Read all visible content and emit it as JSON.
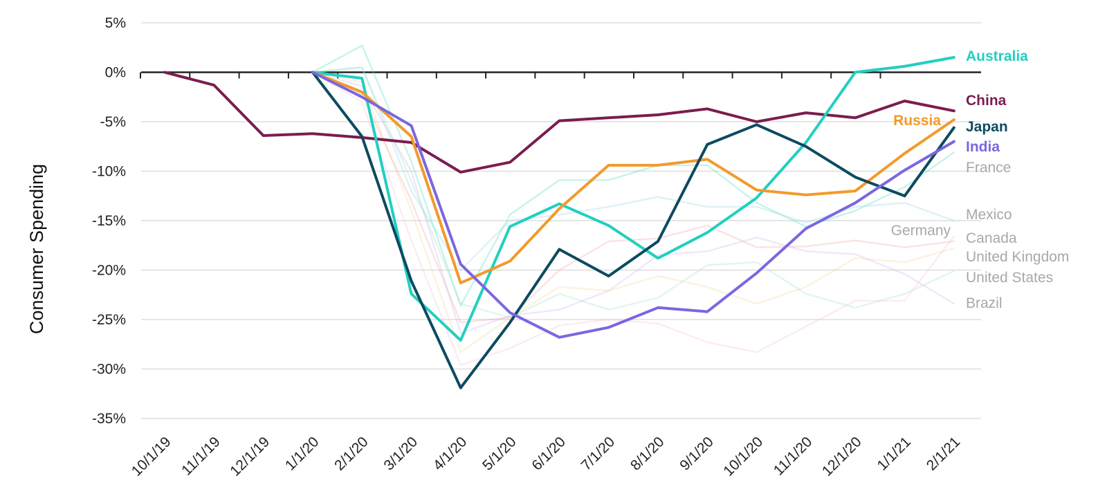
{
  "chart_data": {
    "type": "line",
    "ylabel": "Consumer Spending",
    "ylim": [
      -35,
      5
    ],
    "y_ticks": [
      5,
      0,
      -5,
      -10,
      -15,
      -20,
      -25,
      -30,
      -35
    ],
    "y_tick_labels": [
      "5%",
      "0%",
      "-5%",
      "-10%",
      "-15%",
      "-20%",
      "-25%",
      "-30%",
      "-35%"
    ],
    "categories": [
      "10/1/19",
      "11/1/19",
      "12/1/19",
      "1/1/20",
      "2/1/20",
      "3/1/20",
      "4/1/20",
      "5/1/20",
      "6/1/20",
      "7/1/20",
      "8/1/20",
      "9/1/20",
      "10/1/20",
      "11/1/20",
      "12/1/20",
      "1/1/21",
      "2/1/21"
    ],
    "grid": true,
    "legend": "direct labels at right end of lines",
    "series": [
      {
        "name": "France",
        "color": "#4dd9b8",
        "highlight": false,
        "values": [
          null,
          null,
          null,
          0,
          2.7,
          -9,
          -23.6,
          -14.4,
          -10.9,
          -10.9,
          -9.4,
          -9.4,
          -13.2,
          -15.6,
          -14,
          -11.6,
          -8.1
        ]
      },
      {
        "name": "Mexico",
        "color": "#8fd6e6",
        "highlight": false,
        "values": [
          null,
          null,
          null,
          0,
          0.5,
          -12,
          -20,
          -15,
          -14.4,
          -13.6,
          -12.6,
          -13.6,
          -13.6,
          -15.2,
          -13.6,
          -13.2,
          -15
        ]
      },
      {
        "name": "Germany",
        "color": "#f4a6a6",
        "highlight": false,
        "values": [
          null,
          null,
          null,
          0,
          -2.2,
          -13,
          -25.3,
          -24.8,
          -20,
          -17.1,
          -16.8,
          -15.5,
          -17.7,
          -17.6,
          -17,
          -17.7,
          -17.1
        ]
      },
      {
        "name": "Canada",
        "color": "#cfb4ee",
        "highlight": false,
        "values": [
          null,
          null,
          null,
          0,
          -1.4,
          -10,
          -26.4,
          -24.6,
          -24,
          -22.1,
          -18.5,
          -18.1,
          -16.7,
          -18.1,
          -18.4,
          -20.4,
          -23.4
        ]
      },
      {
        "name": "United Kingdom",
        "color": "#f7d79c",
        "highlight": false,
        "values": [
          null,
          null,
          null,
          0,
          -1,
          -14,
          -28.3,
          -24.8,
          -21.7,
          -22.1,
          -20.6,
          -21.7,
          -23.4,
          -21.7,
          -18.8,
          -19.2,
          -17.8
        ]
      },
      {
        "name": "United States",
        "color": "#9fe4c8",
        "highlight": false,
        "values": [
          null,
          null,
          null,
          0,
          0.5,
          -11,
          -23.4,
          -24.8,
          -22.4,
          -24,
          -22.8,
          -19.5,
          -19.2,
          -22.4,
          -23.8,
          -22.4,
          -20.1
        ]
      },
      {
        "name": "Brazil",
        "color": "#f7c0dc",
        "highlight": false,
        "values": [
          null,
          null,
          null,
          0,
          -3,
          -17,
          -29.6,
          -27.9,
          -25.6,
          -25,
          -25.4,
          -27.3,
          -28.3,
          -25.7,
          -23.1,
          -23.1,
          -16.6
        ]
      },
      {
        "name": "China",
        "color": "#7b1c4e",
        "highlight": true,
        "values": [
          0,
          -1.3,
          -6.4,
          -6.2,
          -6.6,
          -7.1,
          -10.1,
          -9.1,
          -4.9,
          -4.6,
          -4.3,
          -3.7,
          -5,
          -4.1,
          -4.6,
          -2.9,
          -3.9
        ]
      },
      {
        "name": "Australia",
        "color": "#22cfc0",
        "highlight": true,
        "values": [
          null,
          null,
          null,
          0,
          -0.6,
          -22.4,
          -27.1,
          -15.6,
          -13.3,
          -15.5,
          -18.8,
          -16.2,
          -12.7,
          -7.1,
          0,
          0.6,
          1.5
        ]
      },
      {
        "name": "Russia",
        "color": "#f29a2a",
        "highlight": true,
        "values": [
          null,
          null,
          null,
          0,
          -2,
          -6.5,
          -21.3,
          -19.1,
          -13.8,
          -9.4,
          -9.4,
          -8.8,
          -11.9,
          -12.4,
          -12,
          -8.2,
          -4.8
        ]
      },
      {
        "name": "Japan",
        "color": "#0d4a60",
        "highlight": true,
        "values": [
          null,
          null,
          null,
          0,
          -6.5,
          -21.1,
          -31.9,
          -25.3,
          -17.9,
          -20.6,
          -17.1,
          -7.3,
          -5.3,
          -7.5,
          -10.6,
          -12.5,
          -5.6
        ]
      },
      {
        "name": "India",
        "color": "#7b66e0",
        "highlight": true,
        "values": [
          null,
          null,
          null,
          0,
          -2.5,
          -5.4,
          -19.4,
          -24.3,
          -26.8,
          -25.8,
          -23.8,
          -24.2,
          -20.3,
          -15.8,
          -13.2,
          -9.9,
          -7
        ]
      }
    ]
  }
}
